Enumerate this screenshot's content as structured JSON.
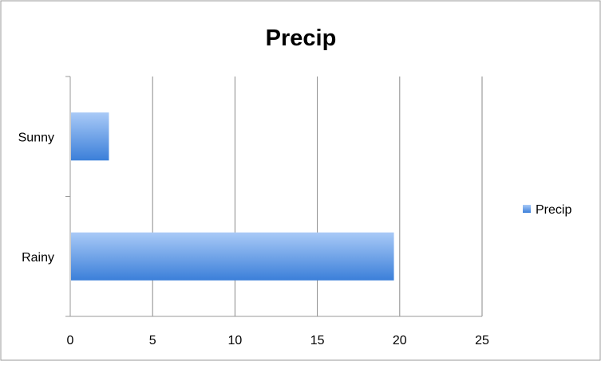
{
  "chart_data": {
    "type": "bar",
    "orientation": "horizontal",
    "title": "Precip",
    "categories": [
      "Sunny",
      "Rainy"
    ],
    "series": [
      {
        "name": "Precip",
        "values": [
          2.3,
          19.6
        ]
      }
    ],
    "xlim": [
      0,
      25
    ],
    "x_ticks": [
      0,
      5,
      10,
      15,
      20,
      25
    ],
    "grid": true,
    "legend_position": "right",
    "colors": {
      "bar_light": "#a9caf7",
      "bar_dark": "#3b7fd9",
      "grid": "#8a8a8a",
      "frame": "#9a9a9a"
    }
  }
}
